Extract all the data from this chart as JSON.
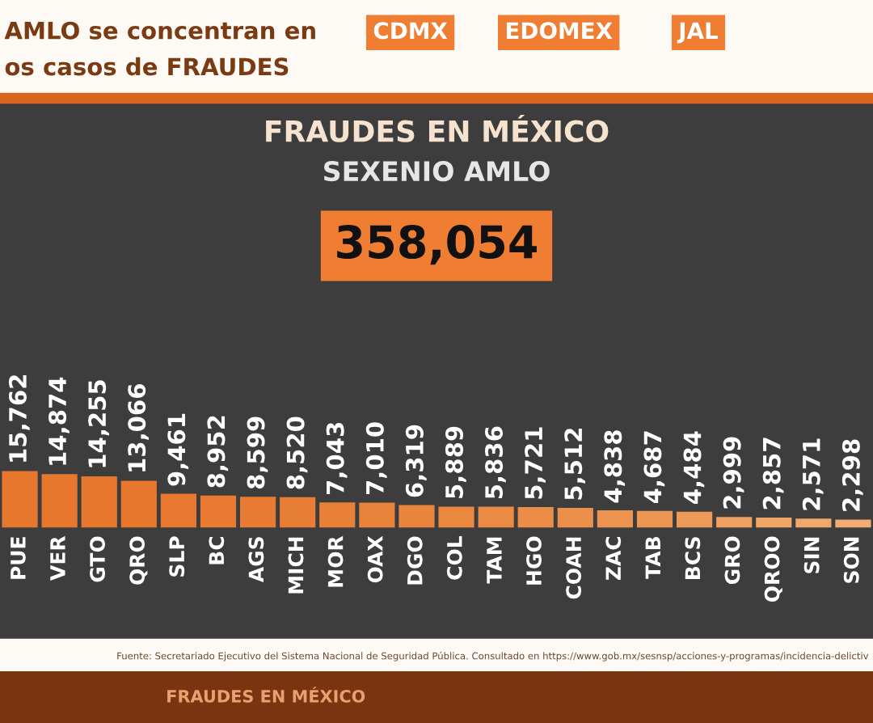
{
  "chart_data": {
    "type": "bar",
    "title": "FRAUDES EN MÉXICO",
    "subtitle": "SEXENIO AMLO",
    "categories": [
      "PUE",
      "VER",
      "GTO",
      "QRO",
      "SLP",
      "BC",
      "AGS",
      "MICH",
      "MOR",
      "OAX",
      "DGO",
      "COL",
      "TAM",
      "HGO",
      "COAH",
      "ZAC",
      "TAB",
      "BCS",
      "GRO",
      "QROO",
      "SIN",
      "SON"
    ],
    "values": [
      15762,
      14874,
      14255,
      13066,
      9461,
      8952,
      8599,
      8520,
      7043,
      7010,
      6319,
      5889,
      5836,
      5721,
      5512,
      4838,
      4687,
      4484,
      2999,
      2857,
      2571,
      2298
    ],
    "colors": [
      "#e8772e",
      "#e8772e",
      "#e8772e",
      "#e8772e",
      "#e8782f",
      "#e87a31",
      "#e87b33",
      "#e87d35",
      "#e98037",
      "#e9823a",
      "#e9853d",
      "#ea8840",
      "#ea8a43",
      "#eb8d47",
      "#eb904b",
      "#ec934f",
      "#ec9653",
      "#ed9a58",
      "#eea160",
      "#efa566",
      "#f0a96b",
      "#f1ad71"
    ],
    "value_labels": [
      "15,762",
      "14,874",
      "14,255",
      "13,066",
      "9,461",
      "8,952",
      "8,599",
      "8,520",
      "7,043",
      "7,010",
      "6,319",
      "5,889",
      "5,836",
      "5,721",
      "5,512",
      "4,838",
      "4,687",
      "4,484",
      "2,999",
      "2,857",
      "2,571",
      "2,298"
    ],
    "grid": false,
    "legend": false,
    "annotations": [
      "AMLO se concentran en",
      "os casos de FRAUDES",
      "CDMX",
      "EDOMEX",
      "JAL",
      "358,054",
      "Fuente: Secretariado Ejecutivo del Sistema Nacional de Seguridad Pública. Consultado en https://www.gob.mx/sesnsp/acciones-y-programas/incidencia-delictiv",
      "FRAUDES EN MÉXICO"
    ]
  }
}
